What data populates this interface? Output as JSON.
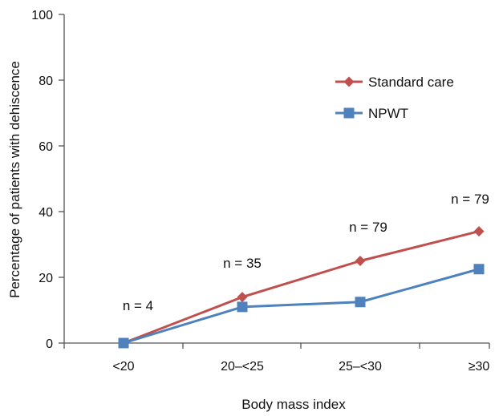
{
  "chart_data": {
    "type": "line",
    "title": "",
    "xlabel": "Body mass index",
    "ylabel": "Percentage of patients with dehiscence",
    "categories": [
      "<20",
      "20–<25",
      "25–<30",
      "≥30"
    ],
    "ylim": [
      0,
      100
    ],
    "yticks": [
      0,
      20,
      40,
      60,
      80,
      100
    ],
    "grid": false,
    "legend_position": "top-right",
    "series": [
      {
        "name": "Standard care",
        "values": [
          0,
          14,
          25,
          34
        ],
        "color": "#c0504d",
        "marker": "diamond"
      },
      {
        "name": "NPWT",
        "values": [
          0,
          11,
          12.5,
          22.5
        ],
        "color": "#4f81bd",
        "marker": "square"
      }
    ],
    "annotations": [
      "n = 4",
      "n = 35",
      "n = 79",
      "n = 79"
    ]
  }
}
